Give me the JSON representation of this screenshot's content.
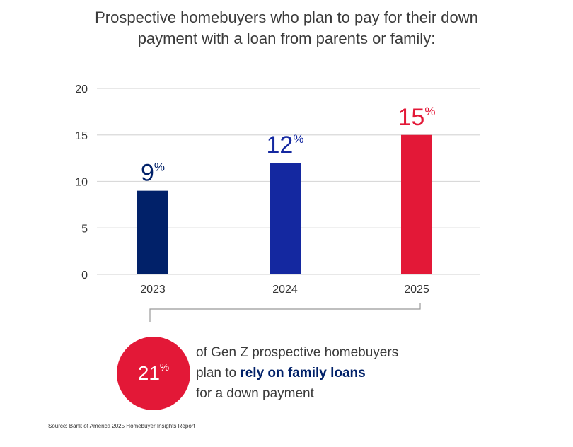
{
  "title": "Prospective homebuyers who plan to pay for their down payment with a loan from parents or family:",
  "chart_data": {
    "type": "bar",
    "categories": [
      "2023",
      "2024",
      "2025"
    ],
    "values": [
      9,
      12,
      15
    ],
    "data_labels": [
      "9",
      "12",
      "15"
    ],
    "data_label_suffix": "%",
    "bar_colors": [
      "#012169",
      "#1428a0",
      "#e31837"
    ],
    "yticks": [
      "0",
      "5",
      "10",
      "15",
      "20"
    ],
    "ylim": [
      0,
      20
    ],
    "grid": true,
    "xlabel": "",
    "ylabel": ""
  },
  "callout": {
    "stat": "21",
    "stat_suffix": "%",
    "circle_color": "#e31837",
    "line1": "of Gen Z prospective homebuyers",
    "line2_prefix": "plan to ",
    "line2_emphasis": "rely on family loans",
    "line3": "for a down payment"
  },
  "source": "Source: Bank of America 2025 Homebuyer Insights Report"
}
